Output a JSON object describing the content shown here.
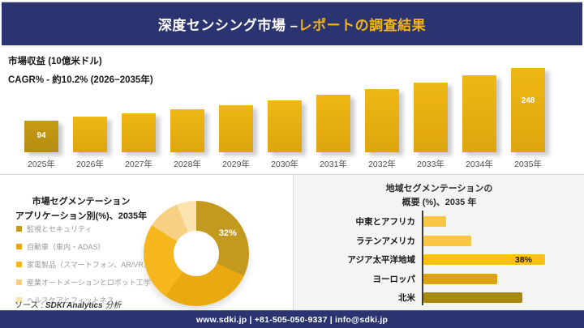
{
  "header": {
    "title_main": "深度センシング市場 –",
    "title_accent": "レポートの調査結果"
  },
  "chart_data": [
    {
      "id": "revenue",
      "type": "bar",
      "title": "市場収益 (10億米ドル)",
      "subtitle": "CAGR% - 約10.2% (2026−2035年)",
      "categories": [
        "2025年",
        "2026年",
        "2027年",
        "2028年",
        "2029年",
        "2030年",
        "2031年",
        "2032年",
        "2033年",
        "2034年",
        "2035年"
      ],
      "values": [
        94,
        104,
        114,
        126,
        139,
        153,
        168,
        185,
        204,
        226,
        248
      ],
      "data_labels": [
        "94",
        "",
        "",
        "",
        "",
        "",
        "",
        "",
        "",
        "",
        "248"
      ],
      "bar_color": "#e4ab12",
      "first_bar_color": "#bd9314",
      "ylim": [
        0,
        260
      ],
      "grid": false
    },
    {
      "id": "application-segmentation",
      "type": "pie",
      "title_line1": "市場セグメンテーション",
      "title_line2": "アプリケーション別(%)、2035年",
      "legend_position": "left",
      "segments": [
        {
          "label": "監視とセキュリティ",
          "value": 32,
          "color": "#c4991f",
          "data_label": "32%"
        },
        {
          "label": "自動車（車内・ADAS）",
          "value": 28,
          "color": "#e8aa10",
          "data_label": ""
        },
        {
          "label": "家電製品（スマートフォン、AR/VR）",
          "value": 24,
          "color": "#f5b71d",
          "data_label": ""
        },
        {
          "label": "産業オートメーションとロボット工学",
          "value": 10,
          "color": "#f8d084",
          "data_label": ""
        },
        {
          "label": "ヘルスケアとフィットネス",
          "value": 6,
          "color": "#fbe4b0",
          "data_label": ""
        }
      ]
    },
    {
      "id": "regional-segmentation",
      "type": "bar",
      "orientation": "horizontal",
      "title_line1": "地域セグメンテーションの",
      "title_line2": "概要 (%)、2035 年",
      "rows": [
        {
          "label": "中東とアフリカ",
          "value": 7,
          "color": "#f8c643",
          "data_label": ""
        },
        {
          "label": "ラテンアメリカ",
          "value": 15,
          "color": "#f8c643",
          "data_label": ""
        },
        {
          "label": "アジア太平洋地域",
          "value": 38,
          "color": "#fdc10d",
          "data_label": "38%"
        },
        {
          "label": "ヨーロッパ",
          "value": 23,
          "color": "#dba311",
          "data_label": ""
        },
        {
          "label": "北米",
          "value": 31,
          "color": "#a8890f",
          "data_label": ""
        }
      ]
    }
  ],
  "source_note": {
    "prefix": "ソース : ",
    "name": "SDKI Analytics",
    "suffix": " 分析"
  },
  "footer": {
    "text": "www.sdki.jp | +81-505-050-9337 | info@sdki.jp"
  }
}
